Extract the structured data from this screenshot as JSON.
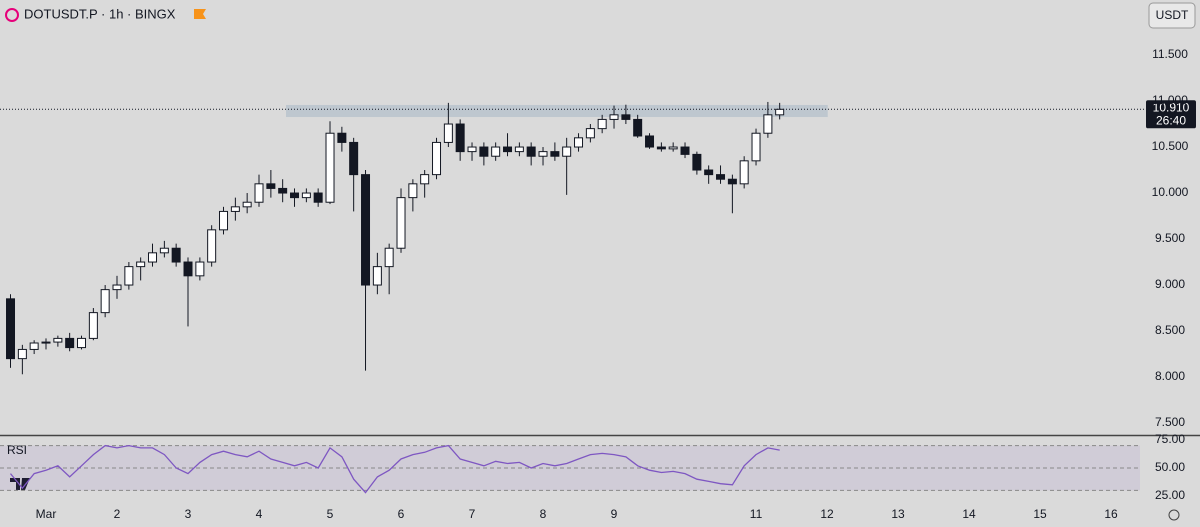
{
  "header": {
    "symbol": "DOTUSDT.P · 1h · BINGX",
    "currency_button": "USDT"
  },
  "chart_data": [
    {
      "type": "candlestick",
      "x": [
        0.5,
        0.667,
        0.833,
        1,
        1.167,
        1.333,
        1.5,
        1.667,
        1.833,
        2,
        2.167,
        2.333,
        2.5,
        2.667,
        2.833,
        3,
        3.167,
        3.333,
        3.5,
        3.667,
        3.833,
        4,
        4.167,
        4.333,
        4.5,
        4.667,
        4.833,
        5,
        5.167,
        5.333,
        5.5,
        5.667,
        5.833,
        6,
        6.167,
        6.333,
        6.5,
        6.667,
        6.833,
        7,
        7.167,
        7.333,
        7.5,
        7.667,
        7.833,
        8,
        8.167,
        8.333,
        8.5,
        8.667,
        8.833,
        9,
        9.167,
        9.333,
        9.5,
        9.667,
        9.833,
        10,
        10.167,
        10.333,
        10.5,
        10.667,
        10.833,
        11,
        11.167,
        11.333
      ],
      "open": [
        8.85,
        8.2,
        8.3,
        8.37,
        8.38,
        8.42,
        8.32,
        8.42,
        8.7,
        8.95,
        9.0,
        9.2,
        9.25,
        9.35,
        9.4,
        9.25,
        9.1,
        9.25,
        9.6,
        9.8,
        9.85,
        9.9,
        10.1,
        10.05,
        10.0,
        9.95,
        10.0,
        9.9,
        10.65,
        10.55,
        10.2,
        9.0,
        9.2,
        9.4,
        9.95,
        10.1,
        10.2,
        10.55,
        10.75,
        10.45,
        10.5,
        10.4,
        10.5,
        10.45,
        10.5,
        10.4,
        10.45,
        10.4,
        10.5,
        10.6,
        10.7,
        10.8,
        10.85,
        10.8,
        10.62,
        10.5,
        10.48,
        10.5,
        10.42,
        10.25,
        10.2,
        10.15,
        10.1,
        10.35,
        10.65,
        10.85
      ],
      "high": [
        8.9,
        8.35,
        8.4,
        8.42,
        8.45,
        8.48,
        8.45,
        8.75,
        9.0,
        9.1,
        9.25,
        9.3,
        9.45,
        9.48,
        9.45,
        9.3,
        9.3,
        9.65,
        9.85,
        9.95,
        10.0,
        10.2,
        10.25,
        10.15,
        10.05,
        10.05,
        10.05,
        10.78,
        10.72,
        10.6,
        10.25,
        9.35,
        9.45,
        10.05,
        10.15,
        10.25,
        10.6,
        10.98,
        10.8,
        10.55,
        10.55,
        10.55,
        10.65,
        10.55,
        10.55,
        10.5,
        10.55,
        10.6,
        10.65,
        10.75,
        10.85,
        10.95,
        10.96,
        10.85,
        10.65,
        10.55,
        10.55,
        10.55,
        10.45,
        10.3,
        10.3,
        10.2,
        10.4,
        10.7,
        10.99,
        10.98
      ],
      "low": [
        8.1,
        8.03,
        8.25,
        8.3,
        8.33,
        8.28,
        8.3,
        8.4,
        8.65,
        8.85,
        8.95,
        9.05,
        9.2,
        9.3,
        9.2,
        8.55,
        9.05,
        9.2,
        9.55,
        9.7,
        9.78,
        9.85,
        9.95,
        9.9,
        9.85,
        9.9,
        9.85,
        9.88,
        10.45,
        9.8,
        8.07,
        8.9,
        8.9,
        9.35,
        9.8,
        9.95,
        10.15,
        10.5,
        10.35,
        10.35,
        10.3,
        10.35,
        10.4,
        10.4,
        10.3,
        10.3,
        10.35,
        9.98,
        10.45,
        10.55,
        10.65,
        10.7,
        10.75,
        10.6,
        10.48,
        10.45,
        10.45,
        10.38,
        10.2,
        10.1,
        10.1,
        9.78,
        10.05,
        10.3,
        10.6,
        10.8
      ],
      "close": [
        8.2,
        8.3,
        8.37,
        8.38,
        8.42,
        8.32,
        8.42,
        8.7,
        8.95,
        9.0,
        9.2,
        9.25,
        9.35,
        9.4,
        9.25,
        9.1,
        9.25,
        9.6,
        9.8,
        9.85,
        9.9,
        10.1,
        10.05,
        10.0,
        9.95,
        10.0,
        9.9,
        10.65,
        10.55,
        10.2,
        9.0,
        9.2,
        9.4,
        9.95,
        10.1,
        10.2,
        10.55,
        10.75,
        10.45,
        10.5,
        10.4,
        10.5,
        10.45,
        10.5,
        10.4,
        10.45,
        10.4,
        10.5,
        10.6,
        10.7,
        10.8,
        10.85,
        10.8,
        10.62,
        10.5,
        10.48,
        10.5,
        10.42,
        10.25,
        10.2,
        10.15,
        10.1,
        10.35,
        10.65,
        10.85,
        10.91
      ],
      "up_color": "#ffffff",
      "down_color": "#131722",
      "xlim": [
        0.352,
        16.408
      ],
      "ylim": [
        7.37,
        12.098
      ],
      "xticks": [
        {
          "value": 1,
          "label": "Mar"
        },
        2,
        3,
        4,
        5,
        6,
        7,
        8,
        9,
        11,
        12,
        13,
        14,
        15,
        16
      ],
      "yticks": [
        {
          "value": 7.5,
          "label": "7.500"
        },
        {
          "value": 8,
          "label": "8.000"
        },
        {
          "value": 8.5,
          "label": "8.500"
        },
        {
          "value": 9,
          "label": "9.000"
        },
        {
          "value": 9.5,
          "label": "9.500"
        },
        {
          "value": 10,
          "label": "10.000"
        },
        {
          "value": 10.5,
          "label": "10.500"
        },
        {
          "value": 11,
          "label": "11.000"
        },
        {
          "value": 11.5,
          "label": "11.500"
        }
      ],
      "zone": {
        "x": [
          4.38,
          12.01
        ],
        "y": [
          10.826,
          10.957
        ],
        "color": "#b8c3cd"
      },
      "last_price": {
        "value": 10.91,
        "label": "10.910"
      },
      "countdown": "26:40"
    },
    {
      "type": "line",
      "label": "RSI",
      "color": "#7e57c2",
      "x": [
        0.5,
        0.667,
        0.833,
        1,
        1.167,
        1.333,
        1.5,
        1.667,
        1.833,
        2,
        2.167,
        2.333,
        2.5,
        2.667,
        2.833,
        3,
        3.167,
        3.333,
        3.5,
        3.667,
        3.833,
        4,
        4.167,
        4.333,
        4.5,
        4.667,
        4.833,
        5,
        5.167,
        5.333,
        5.5,
        5.667,
        5.833,
        6,
        6.167,
        6.333,
        6.5,
        6.667,
        6.833,
        7,
        7.167,
        7.333,
        7.5,
        7.667,
        7.833,
        8,
        8.167,
        8.333,
        8.5,
        8.667,
        8.833,
        9,
        9.167,
        9.333,
        9.5,
        9.667,
        9.833,
        10,
        10.167,
        10.333,
        10.5,
        10.667,
        10.833,
        11,
        11.167,
        11.333
      ],
      "values": [
        45,
        32,
        45,
        48,
        52,
        42,
        52,
        62,
        70,
        68,
        70,
        68,
        68,
        62,
        50,
        45,
        55,
        62,
        65,
        62,
        60,
        65,
        58,
        55,
        52,
        55,
        50,
        68,
        60,
        40,
        28,
        42,
        48,
        58,
        62,
        64,
        68,
        70,
        58,
        55,
        52,
        56,
        54,
        55,
        50,
        54,
        52,
        54,
        58,
        62,
        63,
        62,
        60,
        52,
        48,
        46,
        47,
        45,
        40,
        38,
        36,
        35,
        52,
        62,
        68,
        66
      ],
      "ylim": [
        21.4,
        77.7
      ],
      "yticks": [
        {
          "value": 25,
          "label": "25.00"
        },
        {
          "value": 50,
          "label": "50.00"
        },
        {
          "value": 75,
          "label": "75.00"
        }
      ],
      "band": [
        30,
        70
      ],
      "levels": [
        70,
        50,
        30
      ]
    }
  ]
}
